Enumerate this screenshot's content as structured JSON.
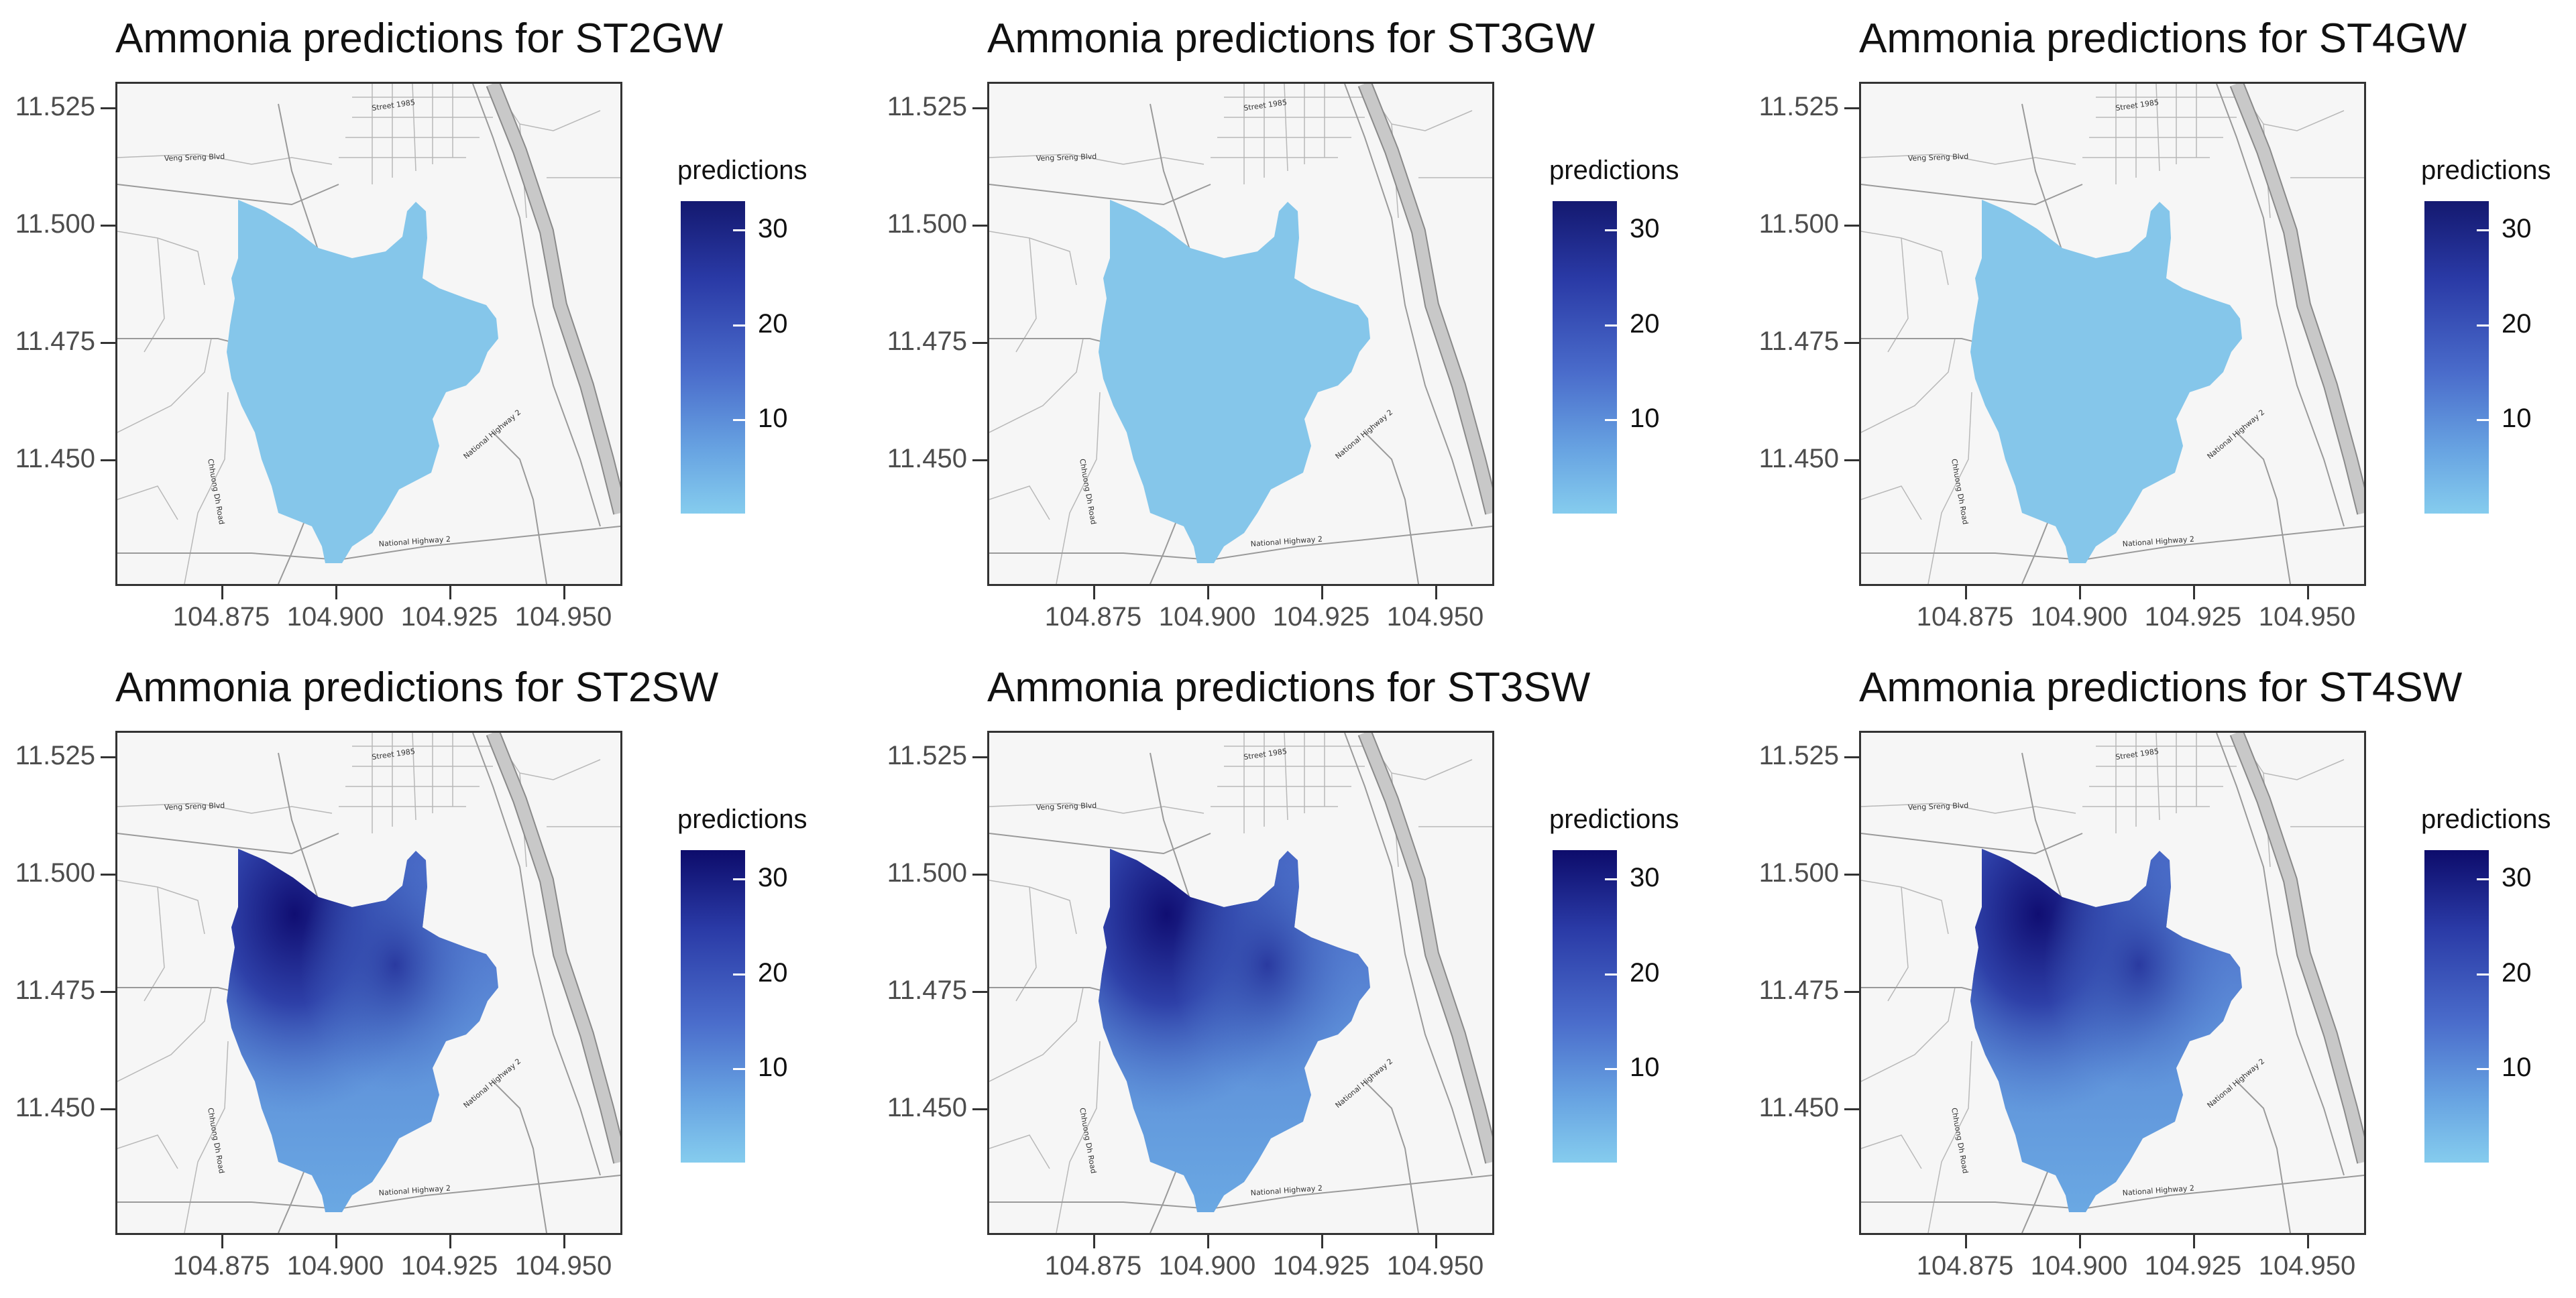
{
  "panels": [
    {
      "title": "Ammonia predictions for ST2GW",
      "mode": "gw"
    },
    {
      "title": "Ammonia predictions for ST3GW",
      "mode": "gw"
    },
    {
      "title": "Ammonia predictions for ST4GW",
      "mode": "gw"
    },
    {
      "title": "Ammonia predictions for ST2SW",
      "mode": "sw"
    },
    {
      "title": "Ammonia predictions for ST3SW",
      "mode": "sw"
    },
    {
      "title": "Ammonia predictions for ST4SW",
      "mode": "sw"
    }
  ],
  "axes": {
    "y_ticks": [
      "11.525",
      "11.500",
      "11.475",
      "11.450"
    ],
    "x_ticks": [
      "104.875",
      "104.900",
      "104.925",
      "104.950"
    ]
  },
  "legend": {
    "title": "predictions",
    "ticks": [
      "30",
      "20",
      "10"
    ],
    "range": [
      0,
      33
    ]
  },
  "map_labels": {
    "national_highway": "National Highway 2",
    "road_a": "Chhuong Dh Road",
    "road_b": "Veng Sreng Blvd",
    "road_c": "Street 1985"
  },
  "colors": {
    "gw_fill": "#85c6ea",
    "low": "#85ccee",
    "high": "#0d0c6b"
  }
}
